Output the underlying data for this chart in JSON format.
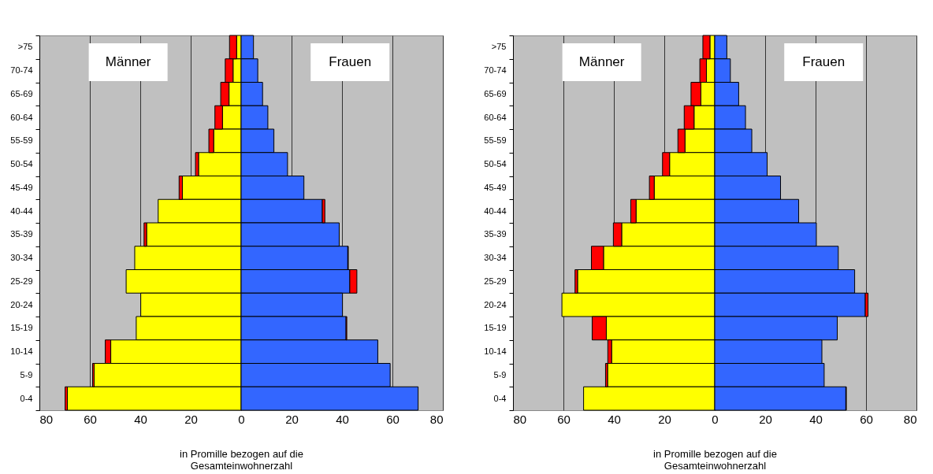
{
  "chart_data": [
    {
      "type": "bar",
      "orientation": "horizontal",
      "stacked": true,
      "xlabel": "in Promille bezogen auf die\nGesamteinwohnerzahl",
      "annotations": [
        "Männer",
        "Frauen"
      ],
      "grid": "x",
      "legend": false,
      "categories": [
        ">75",
        "70-74",
        "65-69",
        "60-64",
        "55-59",
        "50-54",
        "45-49",
        "40-44",
        "35-39",
        "30-34",
        "25-29",
        "20-24",
        "15-19",
        "10-14",
        "5-9",
        "0-4"
      ],
      "xlim": [
        -80,
        80
      ],
      "xticks": [
        {
          "value": -80,
          "label": "80"
        },
        {
          "value": -60,
          "label": "60"
        },
        {
          "value": -40,
          "label": "40"
        },
        {
          "value": -20,
          "label": "20"
        },
        0,
        20,
        40,
        60,
        80
      ],
      "series": [
        {
          "color": "#ffff00",
          "values": [
            -1.8,
            -3.2,
            -4.8,
            -7.4,
            -10.9,
            -16.9,
            -23.3,
            -32.9,
            -37.5,
            -42.2,
            -45.6,
            -39.8,
            -41.6,
            -51.7,
            -58.3,
            -68.9
          ]
        },
        {
          "color": "#ff0000",
          "values": [
            -2.8,
            -3.1,
            -3.3,
            -3.0,
            -1.9,
            -1.2,
            -1.3,
            null,
            -1.0,
            null,
            null,
            null,
            null,
            -2.2,
            -0.6,
            -0.9
          ]
        },
        {
          "color": "#3366ff",
          "values": [
            4.9,
            6.6,
            8.5,
            10.6,
            13.0,
            18.4,
            24.9,
            32.2,
            38.9,
            42.3,
            43.1,
            40.2,
            41.6,
            54.2,
            59.1,
            70.2
          ]
        },
        {
          "color": "#ff0000",
          "values": [
            null,
            null,
            null,
            null,
            null,
            null,
            null,
            1.0,
            null,
            0.2,
            2.8,
            null,
            0.3,
            null,
            null,
            null
          ]
        }
      ]
    },
    {
      "type": "bar",
      "orientation": "horizontal",
      "stacked": true,
      "xlabel": "in Promille bezogen auf die\nGesamteinwohnerzahl",
      "annotations": [
        "Männer",
        "Frauen"
      ],
      "grid": "x",
      "legend": false,
      "categories": [
        ">75",
        "70-74",
        "65-69",
        "60-64",
        "55-59",
        "50-54",
        "45-49",
        "40-44",
        "35-39",
        "30-34",
        "25-29",
        "20-24",
        "15-19",
        "10-14",
        "5-9",
        "0-4"
      ],
      "xlim": [
        -80,
        80
      ],
      "xticks": [
        {
          "value": -80,
          "label": "80"
        },
        {
          "value": -60,
          "label": "60"
        },
        {
          "value": -40,
          "label": "40"
        },
        {
          "value": -20,
          "label": "20"
        },
        0,
        20,
        40,
        60,
        80
      ],
      "series": [
        {
          "color": "#ffff00",
          "values": [
            -1.9,
            -3.3,
            -5.5,
            -8.2,
            -11.8,
            -17.9,
            -24.0,
            -31.2,
            -36.9,
            -44.1,
            -54.4,
            -60.6,
            -43.0,
            -40.9,
            -42.5,
            -52.0
          ]
        },
        {
          "color": "#ff0000",
          "values": [
            -2.8,
            -2.6,
            -3.9,
            -3.9,
            -2.8,
            -2.8,
            -1.9,
            -2.1,
            -3.3,
            -4.8,
            -1.0,
            null,
            -5.6,
            -1.5,
            -0.8,
            null
          ]
        },
        {
          "color": "#3366ff",
          "values": [
            4.8,
            6.2,
            9.5,
            12.2,
            14.7,
            20.8,
            26.1,
            33.3,
            40.3,
            49.0,
            55.5,
            59.7,
            48.6,
            42.5,
            43.4,
            52.0
          ]
        },
        {
          "color": "#ff0000",
          "values": [
            null,
            null,
            null,
            null,
            null,
            null,
            null,
            null,
            null,
            null,
            null,
            1.1,
            null,
            null,
            null,
            0.2
          ]
        }
      ]
    }
  ]
}
